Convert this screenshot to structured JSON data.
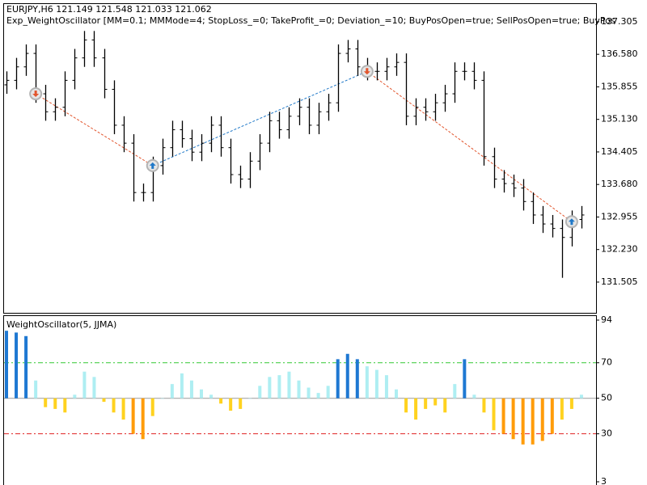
{
  "chart_data": [
    {
      "type": "ohlc",
      "title": "EURJPY,H6  121.149 121.548 121.033 121.062",
      "subtitle": "Exp_WeightOscillator [MM=0.1; MMMode=4; StopLoss_=0; TakeProfit_=0; Deviation_=10; BuyPosOpen=true; SellPosOpen=true; BuyPos",
      "color": "#000000",
      "open": [
        135.9,
        136.0,
        136.3,
        136.6,
        135.7,
        135.3,
        135.4,
        136.0,
        136.5,
        136.9,
        136.5,
        135.8,
        135.0,
        134.6,
        133.5,
        133.5,
        134.1,
        134.5,
        134.9,
        134.7,
        134.4,
        134.6,
        135.0,
        134.5,
        133.9,
        133.8,
        134.2,
        134.6,
        135.1,
        134.9,
        135.2,
        135.4,
        135.0,
        135.3,
        135.5,
        136.6,
        136.7,
        136.3,
        136.2,
        136.2,
        136.3,
        136.4,
        135.2,
        135.4,
        135.3,
        135.5,
        135.7,
        136.2,
        136.2,
        136.0,
        134.3,
        133.8,
        133.7,
        133.6,
        133.3,
        133.0,
        132.8,
        132.7,
        132.5,
        132.9
      ],
      "high": [
        136.2,
        136.5,
        136.8,
        136.8,
        135.9,
        135.6,
        136.2,
        136.7,
        137.1,
        137.1,
        136.7,
        136.0,
        135.2,
        134.8,
        133.7,
        134.3,
        134.7,
        135.1,
        135.1,
        134.9,
        134.8,
        135.2,
        135.2,
        134.7,
        134.1,
        134.4,
        134.8,
        135.3,
        135.3,
        135.4,
        135.6,
        135.6,
        135.5,
        135.7,
        136.8,
        136.9,
        136.9,
        136.5,
        136.4,
        136.5,
        136.6,
        136.6,
        135.6,
        135.6,
        135.7,
        135.9,
        136.4,
        136.4,
        136.4,
        136.2,
        134.5,
        134.0,
        133.9,
        133.8,
        133.5,
        133.2,
        133.0,
        132.9,
        133.1,
        133.2
      ],
      "low": [
        135.7,
        135.8,
        136.1,
        135.5,
        135.1,
        135.1,
        135.2,
        135.8,
        136.3,
        136.3,
        135.6,
        134.8,
        134.4,
        133.3,
        133.3,
        133.3,
        133.9,
        134.3,
        134.5,
        134.2,
        134.2,
        134.4,
        134.3,
        133.7,
        133.6,
        133.6,
        134.0,
        134.4,
        134.7,
        134.7,
        135.0,
        134.8,
        134.8,
        135.1,
        135.3,
        136.4,
        136.1,
        136.0,
        136.0,
        136.0,
        136.1,
        135.0,
        135.0,
        135.1,
        135.1,
        135.3,
        135.5,
        136.0,
        135.8,
        134.1,
        133.6,
        133.5,
        133.4,
        133.1,
        132.8,
        132.6,
        132.5,
        131.6,
        132.3,
        132.7
      ],
      "close": [
        136.0,
        136.3,
        136.6,
        135.7,
        135.3,
        135.4,
        136.0,
        136.5,
        136.9,
        136.5,
        135.8,
        135.0,
        134.6,
        133.5,
        133.5,
        134.1,
        134.5,
        134.9,
        134.7,
        134.4,
        134.6,
        135.0,
        134.5,
        133.9,
        133.8,
        134.2,
        134.6,
        135.1,
        134.9,
        135.2,
        135.4,
        135.0,
        135.3,
        135.5,
        136.6,
        136.7,
        136.3,
        136.2,
        136.2,
        136.3,
        136.4,
        135.2,
        135.4,
        135.3,
        135.5,
        135.7,
        136.2,
        136.2,
        136.0,
        134.3,
        133.8,
        133.7,
        133.6,
        133.3,
        133.0,
        132.8,
        132.7,
        132.5,
        132.9,
        133.0
      ],
      "trades": [
        {
          "index": 3,
          "price": 135.7,
          "side": "sell"
        },
        {
          "index": 15,
          "price": 134.1,
          "side": "buy"
        },
        {
          "index": 37,
          "price": 136.2,
          "side": "sell"
        },
        {
          "index": 58,
          "price": 132.85,
          "side": "buy"
        }
      ],
      "side_colors": {
        "buy": "#1f78c8",
        "sell": "#e2552d"
      },
      "ylim": [
        130.82,
        137.7
      ],
      "yticks": [
        137.305,
        {
          "value": 136.58,
          "label": "136.580"
        },
        135.855,
        {
          "value": 135.13,
          "label": "135.130"
        },
        134.405,
        {
          "value": 133.68,
          "label": "133.680"
        },
        132.955,
        {
          "value": 132.23,
          "label": "132.230"
        },
        131.505
      ]
    },
    {
      "type": "histogram-oscillator",
      "title": "WeightOscillator(5, JJMA)",
      "values": [
        88,
        87,
        85,
        60,
        45,
        44,
        42,
        52,
        65,
        62,
        48,
        42,
        38,
        30,
        27,
        40,
        50,
        58,
        64,
        60,
        55,
        52,
        47,
        43,
        44,
        50,
        57,
        62,
        63,
        65,
        60,
        56,
        53,
        57,
        72,
        75,
        72,
        68,
        66,
        63,
        55,
        42,
        38,
        44,
        46,
        42,
        58,
        72,
        52,
        42,
        32,
        30,
        27,
        24,
        24,
        26,
        30,
        38,
        44,
        52
      ],
      "base": 50,
      "colors": {
        "above_upper": "#1e78d2",
        "above_base": "#aeeef2",
        "below_base": "#ffd21f",
        "below_lower": "#ff9c0a",
        "base_line": "#9a9a9a"
      },
      "levels": [
        {
          "value": 70,
          "color": "#32c832"
        },
        {
          "value": 30,
          "color": "#e02020"
        }
      ],
      "ylim": [
        3,
        94
      ],
      "yticks": [
        94,
        70,
        50,
        30,
        3
      ]
    }
  ]
}
